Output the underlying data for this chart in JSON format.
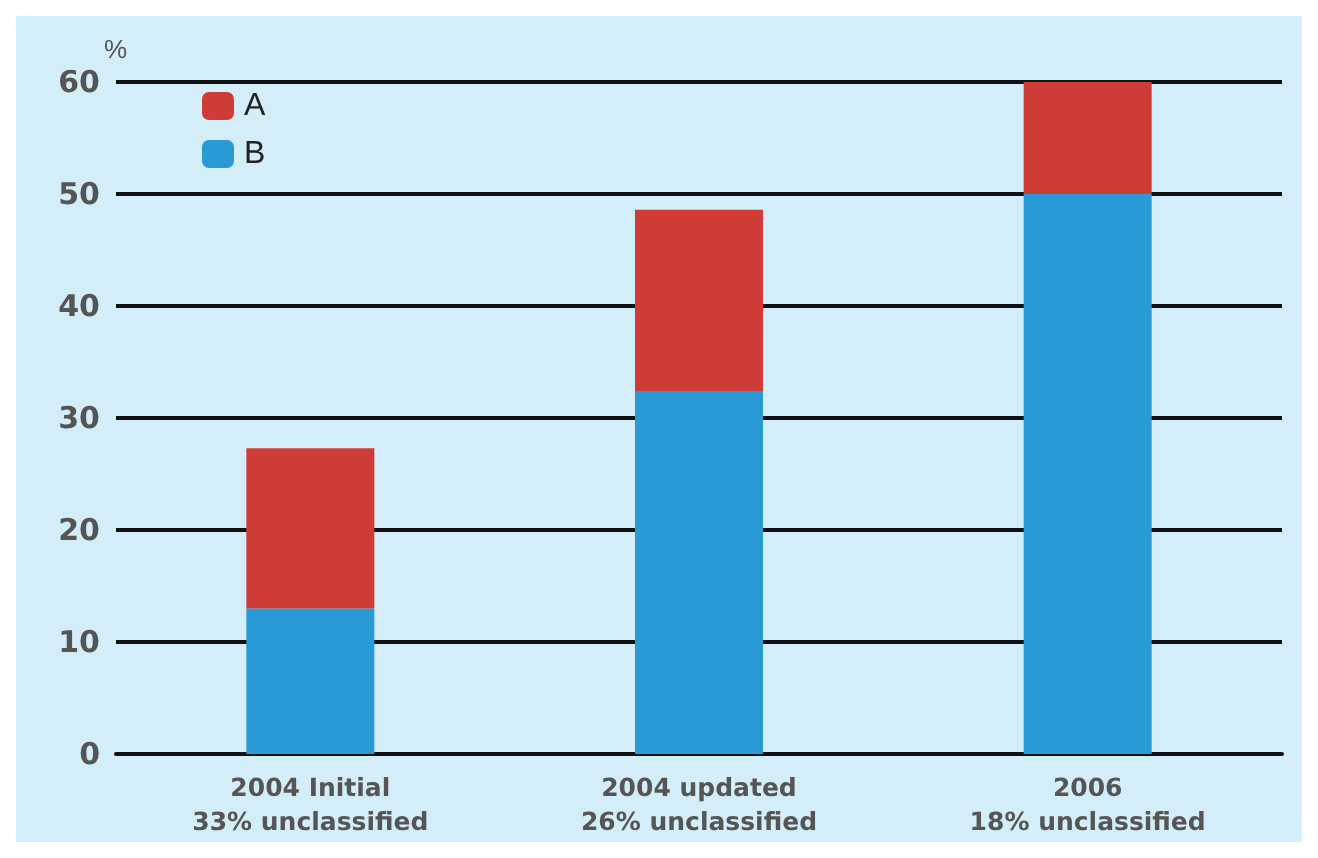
{
  "chart_data": {
    "type": "bar",
    "stacked": true,
    "ylabel": "%",
    "categories": [
      "2004 Initial\n33% unclassified",
      "2004 updated\n26% unclassified",
      "2006\n18% unclassified"
    ],
    "series": [
      {
        "name": "B",
        "color": "#2a9ad6",
        "values": [
          13,
          32.4,
          50
        ]
      },
      {
        "name": "A",
        "color": "#cf3c38",
        "values": [
          14.3,
          16.2,
          10
        ]
      }
    ],
    "ylim": [
      0,
      60
    ],
    "yticks": [
      0,
      10,
      20,
      30,
      40,
      50,
      60
    ],
    "grid": "y",
    "legend": "top left"
  }
}
